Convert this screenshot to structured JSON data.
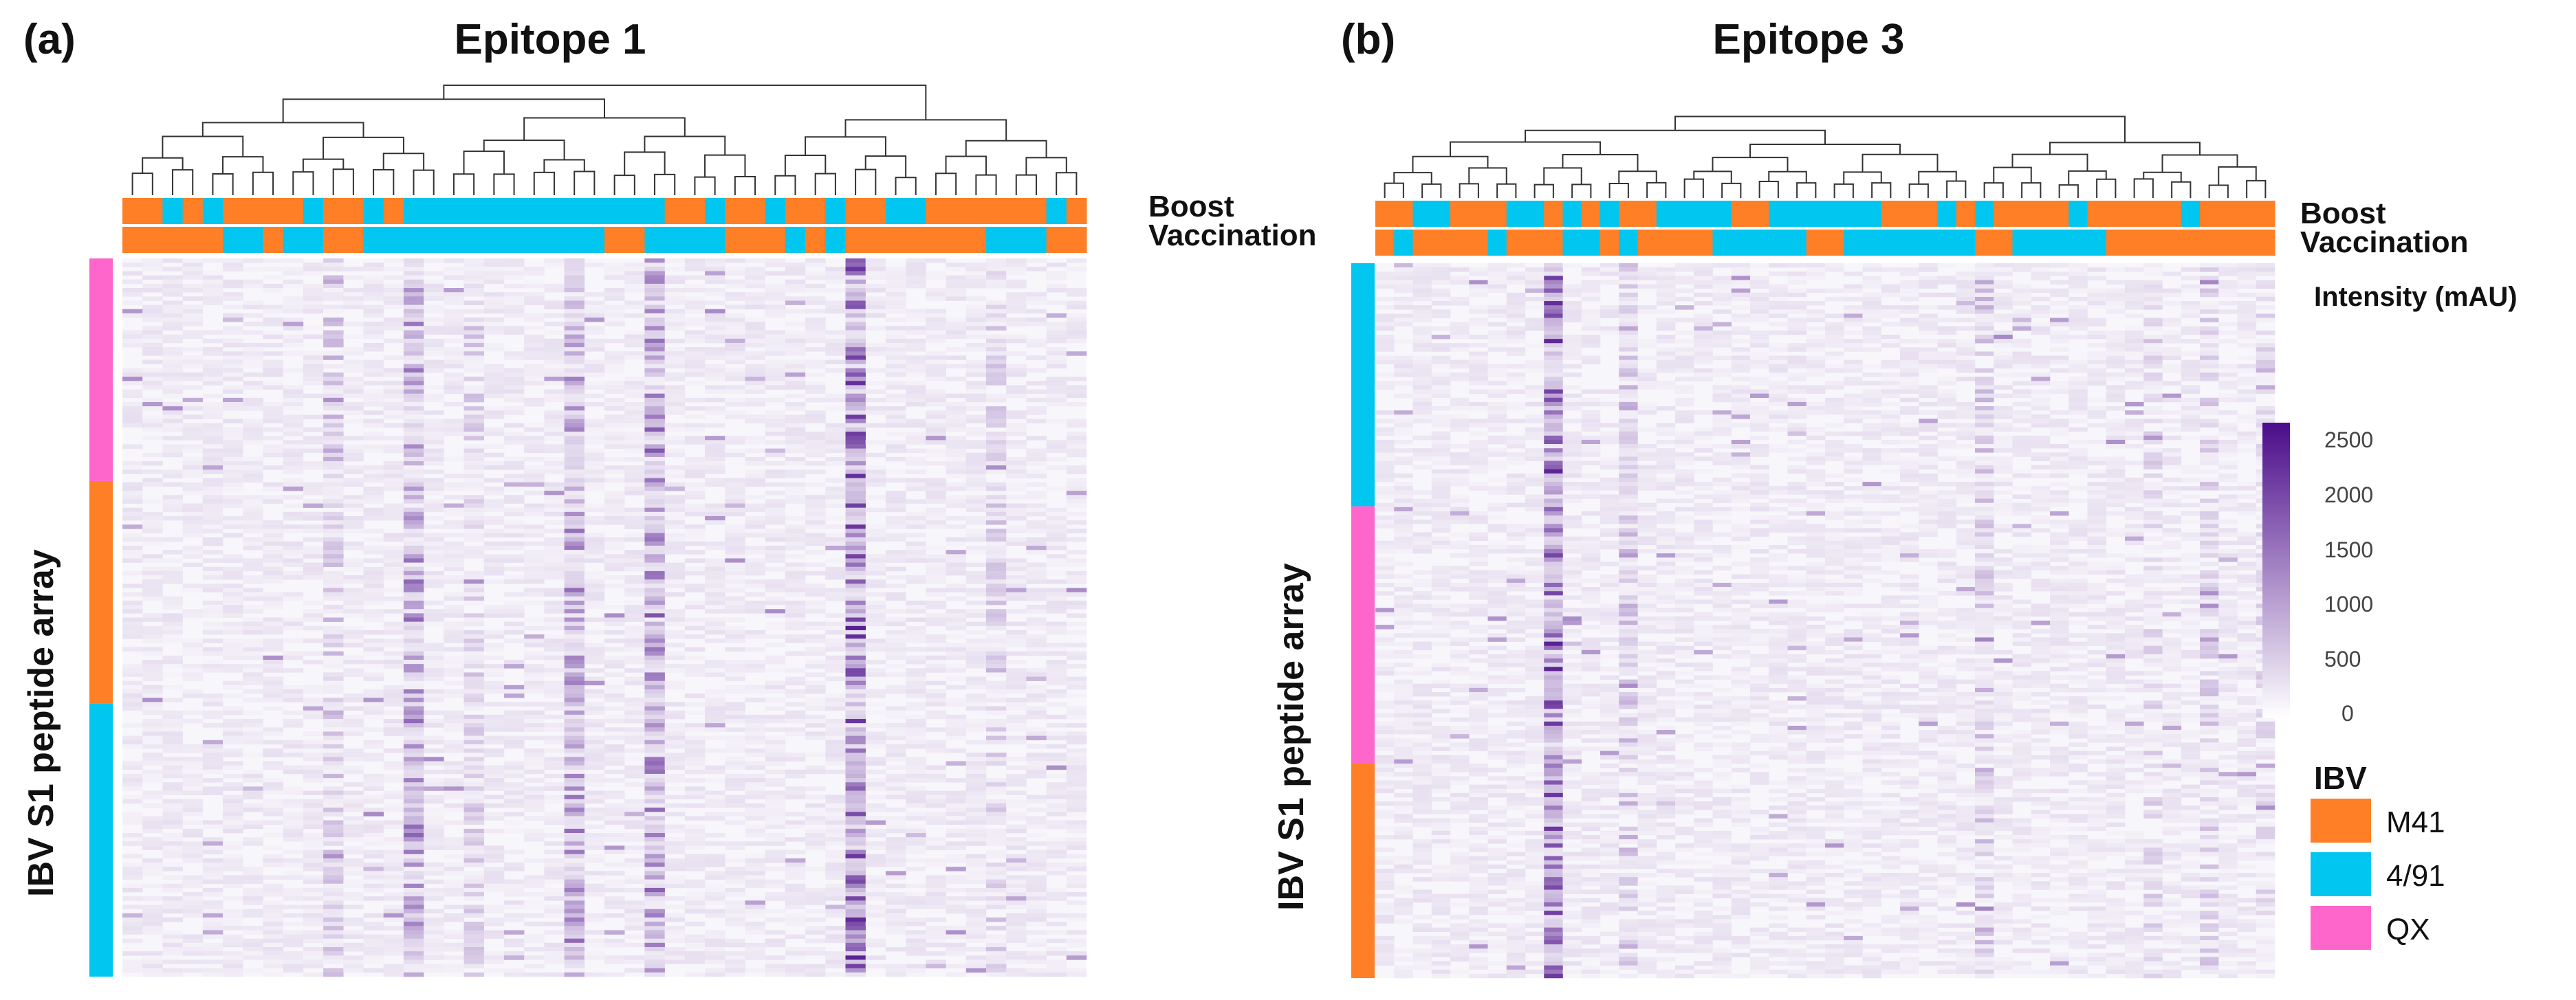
{
  "colors": {
    "M41": "#FF7F27",
    "4/91": "#00C6F0",
    "QX": "#FF66CC",
    "heat_low": "#ffffff",
    "heat_high": "#4B0C8A"
  },
  "panels": [
    {
      "letter": "(a)",
      "title": "Epitope 1",
      "row_label": "IBV S1 peptide array",
      "annotation_labels": [
        "Boost",
        "Vaccination"
      ]
    },
    {
      "letter": "(b)",
      "title": "Epitope 3",
      "row_label": "IBV S1 peptide array",
      "annotation_labels": [
        "Boost",
        "Vaccination"
      ]
    }
  ],
  "colorbar": {
    "title": "Intensity (mAU)",
    "ticks": [
      "2500",
      "2000",
      "1500",
      "1000",
      "500",
      "0"
    ]
  },
  "ibv_legend": {
    "title": "IBV",
    "items": [
      {
        "label": "M41",
        "color": "#FF7F27"
      },
      {
        "label": "4/91",
        "color": "#00C6F0"
      },
      {
        "label": "QX",
        "color": "#FF66CC"
      }
    ]
  },
  "chart_data": [
    {
      "type": "heatmap",
      "title": "Epitope 1",
      "ylabel": "IBV S1 peptide array",
      "value_range": [
        0,
        2800
      ],
      "n_columns": 48,
      "row_groups": [
        {
          "strain": "QX",
          "fraction": 0.31
        },
        {
          "strain": "M41",
          "fraction": 0.31
        },
        {
          "strain": "4/91",
          "fraction": 0.38
        }
      ],
      "boost": [
        "M41",
        "M41",
        "4/91",
        "M41",
        "4/91",
        "M41",
        "M41",
        "M41",
        "M41",
        "4/91",
        "M41",
        "M41",
        "4/91",
        "M41",
        "4/91",
        "4/91",
        "4/91",
        "4/91",
        "4/91",
        "4/91",
        "4/91",
        "4/91",
        "4/91",
        "4/91",
        "4/91",
        "4/91",
        "4/91",
        "M41",
        "M41",
        "4/91",
        "M41",
        "M41",
        "4/91",
        "M41",
        "M41",
        "4/91",
        "M41",
        "M41",
        "4/91",
        "4/91",
        "M41",
        "M41",
        "M41",
        "M41",
        "M41",
        "M41",
        "4/91",
        "M41"
      ],
      "vaccination": [
        "M41",
        "M41",
        "M41",
        "M41",
        "M41",
        "4/91",
        "4/91",
        "M41",
        "4/91",
        "4/91",
        "M41",
        "M41",
        "4/91",
        "4/91",
        "4/91",
        "4/91",
        "4/91",
        "4/91",
        "4/91",
        "4/91",
        "4/91",
        "4/91",
        "4/91",
        "4/91",
        "M41",
        "M41",
        "4/91",
        "4/91",
        "4/91",
        "4/91",
        "M41",
        "M41",
        "M41",
        "4/91",
        "M41",
        "4/91",
        "M41",
        "M41",
        "M41",
        "M41",
        "M41",
        "M41",
        "M41",
        "4/91",
        "4/91",
        "4/91",
        "M41",
        "M41"
      ],
      "hot_columns": [
        {
          "col": 14,
          "peak": 1700
        },
        {
          "col": 22,
          "peak": 1600
        },
        {
          "col": 26,
          "peak": 1900
        },
        {
          "col": 36,
          "peak": 2800
        },
        {
          "col": 10,
          "peak": 900
        },
        {
          "col": 17,
          "peak": 700
        },
        {
          "col": 43,
          "peak": 700
        }
      ]
    },
    {
      "type": "heatmap",
      "title": "Epitope 3",
      "ylabel": "IBV S1 peptide array",
      "value_range": [
        0,
        2800
      ],
      "n_columns": 48,
      "row_groups": [
        {
          "strain": "4/91",
          "fraction": 0.34
        },
        {
          "strain": "QX",
          "fraction": 0.36
        },
        {
          "strain": "M41",
          "fraction": 0.3
        }
      ],
      "boost": [
        "M41",
        "M41",
        "4/91",
        "4/91",
        "M41",
        "M41",
        "M41",
        "4/91",
        "4/91",
        "M41",
        "4/91",
        "M41",
        "4/91",
        "M41",
        "M41",
        "4/91",
        "4/91",
        "4/91",
        "4/91",
        "M41",
        "M41",
        "4/91",
        "4/91",
        "4/91",
        "4/91",
        "4/91",
        "4/91",
        "M41",
        "M41",
        "M41",
        "4/91",
        "M41",
        "4/91",
        "M41",
        "M41",
        "M41",
        "M41",
        "4/91",
        "M41",
        "M41",
        "M41",
        "M41",
        "M41",
        "4/91",
        "M41",
        "M41",
        "M41",
        "M41"
      ],
      "vaccination": [
        "M41",
        "4/91",
        "M41",
        "M41",
        "M41",
        "M41",
        "4/91",
        "M41",
        "M41",
        "M41",
        "4/91",
        "4/91",
        "M41",
        "4/91",
        "M41",
        "M41",
        "M41",
        "M41",
        "4/91",
        "4/91",
        "4/91",
        "4/91",
        "4/91",
        "M41",
        "M41",
        "4/91",
        "4/91",
        "4/91",
        "4/91",
        "4/91",
        "4/91",
        "4/91",
        "M41",
        "M41",
        "4/91",
        "4/91",
        "4/91",
        "4/91",
        "4/91",
        "M41",
        "M41",
        "M41",
        "M41",
        "M41",
        "M41",
        "M41",
        "M41",
        "M41"
      ],
      "hot_columns": [
        {
          "col": 9,
          "peak": 2800
        },
        {
          "col": 13,
          "peak": 900
        },
        {
          "col": 32,
          "peak": 900
        },
        {
          "col": 41,
          "peak": 600
        },
        {
          "col": 44,
          "peak": 700
        },
        {
          "col": 47,
          "peak": 600
        }
      ]
    }
  ]
}
